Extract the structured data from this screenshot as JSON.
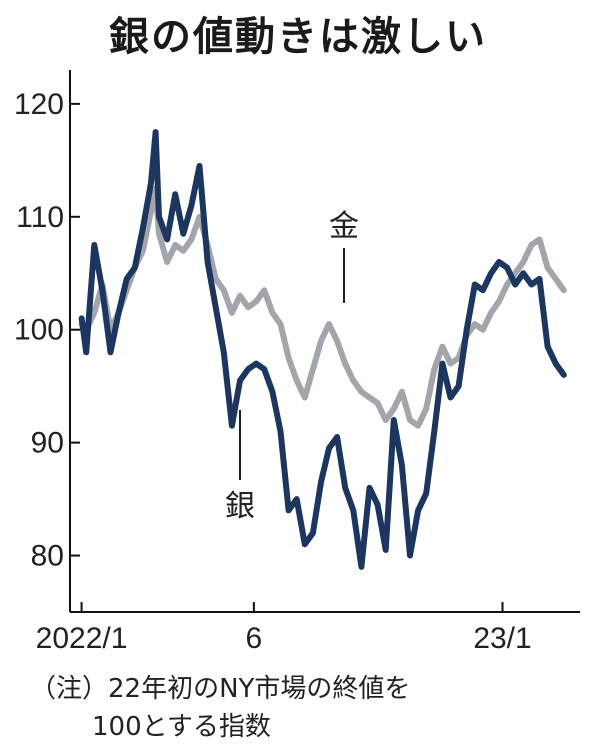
{
  "chart_data": {
    "type": "line",
    "title": "銀の値動きは激しい",
    "xlabel": "",
    "ylabel": "",
    "ylim": [
      75,
      123
    ],
    "yticks": [
      80,
      90,
      100,
      110,
      120
    ],
    "x_ticks": [
      {
        "label": "2022/1",
        "date": "2022-01-03"
      },
      {
        "label": "6",
        "date": "2022-06-01"
      },
      {
        "label": "23/1",
        "date": "2023-01-02"
      }
    ],
    "xlim": [
      "2021-12-24",
      "2023-03-10"
    ],
    "series": [
      {
        "name": "金",
        "color": "#a3a5ad",
        "x": [
          "2022-01-03",
          "2022-01-07",
          "2022-01-14",
          "2022-01-21",
          "2022-01-28",
          "2022-02-04",
          "2022-02-11",
          "2022-02-18",
          "2022-02-25",
          "2022-03-04",
          "2022-03-08",
          "2022-03-11",
          "2022-03-18",
          "2022-03-25",
          "2022-04-01",
          "2022-04-08",
          "2022-04-15",
          "2022-04-22",
          "2022-04-29",
          "2022-05-06",
          "2022-05-13",
          "2022-05-20",
          "2022-05-27",
          "2022-06-03",
          "2022-06-10",
          "2022-06-17",
          "2022-06-24",
          "2022-07-01",
          "2022-07-08",
          "2022-07-15",
          "2022-07-22",
          "2022-07-29",
          "2022-08-05",
          "2022-08-12",
          "2022-08-19",
          "2022-08-26",
          "2022-09-02",
          "2022-09-09",
          "2022-09-16",
          "2022-09-23",
          "2022-09-30",
          "2022-10-07",
          "2022-10-14",
          "2022-10-21",
          "2022-10-28",
          "2022-11-04",
          "2022-11-11",
          "2022-11-18",
          "2022-11-25",
          "2022-12-02",
          "2022-12-09",
          "2022-12-16",
          "2022-12-23",
          "2022-12-30",
          "2023-01-06",
          "2023-01-13",
          "2023-01-20",
          "2023-01-27",
          "2023-02-03",
          "2023-02-10",
          "2023-02-17",
          "2023-02-24"
        ],
        "values": [
          100.5,
          100.0,
          101.5,
          104.0,
          100.0,
          101.5,
          103.5,
          105.5,
          107.0,
          110.5,
          112.5,
          108.5,
          106.0,
          107.5,
          107.0,
          108.0,
          110.0,
          107.5,
          104.5,
          103.5,
          101.5,
          103.0,
          102.0,
          102.5,
          103.5,
          101.5,
          100.5,
          97.5,
          95.5,
          94.0,
          96.5,
          99.0,
          100.5,
          99.0,
          97.0,
          95.5,
          94.5,
          94.0,
          93.5,
          92.0,
          93.0,
          94.5,
          92.0,
          91.5,
          93.0,
          96.5,
          98.5,
          97.0,
          97.5,
          99.5,
          100.5,
          100.0,
          101.5,
          102.5,
          104.0,
          105.0,
          106.0,
          107.5,
          108.0,
          105.5,
          104.5,
          103.5
        ]
      },
      {
        "name": "銀",
        "color": "#1c3660",
        "x": [
          "2022-01-03",
          "2022-01-07",
          "2022-01-14",
          "2022-01-21",
          "2022-01-28",
          "2022-02-04",
          "2022-02-11",
          "2022-02-18",
          "2022-02-25",
          "2022-03-04",
          "2022-03-08",
          "2022-03-11",
          "2022-03-18",
          "2022-03-25",
          "2022-04-01",
          "2022-04-08",
          "2022-04-15",
          "2022-04-22",
          "2022-04-29",
          "2022-05-06",
          "2022-05-13",
          "2022-05-20",
          "2022-05-27",
          "2022-06-03",
          "2022-06-10",
          "2022-06-17",
          "2022-06-24",
          "2022-07-01",
          "2022-07-08",
          "2022-07-15",
          "2022-07-22",
          "2022-07-29",
          "2022-08-05",
          "2022-08-12",
          "2022-08-19",
          "2022-08-26",
          "2022-09-02",
          "2022-09-09",
          "2022-09-16",
          "2022-09-23",
          "2022-09-30",
          "2022-10-07",
          "2022-10-14",
          "2022-10-21",
          "2022-10-28",
          "2022-11-04",
          "2022-11-11",
          "2022-11-18",
          "2022-11-25",
          "2022-12-02",
          "2022-12-09",
          "2022-12-16",
          "2022-12-23",
          "2022-12-30",
          "2023-01-06",
          "2023-01-13",
          "2023-01-20",
          "2023-01-27",
          "2023-02-03",
          "2023-02-10",
          "2023-02-17",
          "2023-02-24"
        ],
        "values": [
          101.0,
          98.0,
          107.5,
          103.5,
          98.0,
          101.5,
          104.5,
          105.5,
          109.0,
          113.0,
          117.5,
          110.0,
          108.0,
          112.0,
          108.5,
          111.0,
          114.5,
          106.0,
          102.0,
          98.0,
          91.5,
          95.5,
          96.5,
          97.0,
          96.5,
          94.5,
          91.0,
          84.0,
          85.0,
          81.0,
          82.0,
          86.5,
          89.5,
          90.5,
          86.0,
          84.0,
          79.0,
          86.0,
          84.5,
          80.5,
          92.0,
          88.0,
          80.0,
          84.0,
          85.5,
          91.0,
          97.0,
          94.0,
          95.0,
          100.0,
          104.0,
          103.5,
          105.0,
          106.0,
          105.5,
          104.0,
          105.0,
          104.0,
          104.5,
          98.5,
          97.0,
          96.0
        ]
      }
    ],
    "annotations": [
      "金",
      "銀"
    ],
    "note": [
      "（注）22年初のNY市場の終値を",
      "100とする指数"
    ]
  }
}
